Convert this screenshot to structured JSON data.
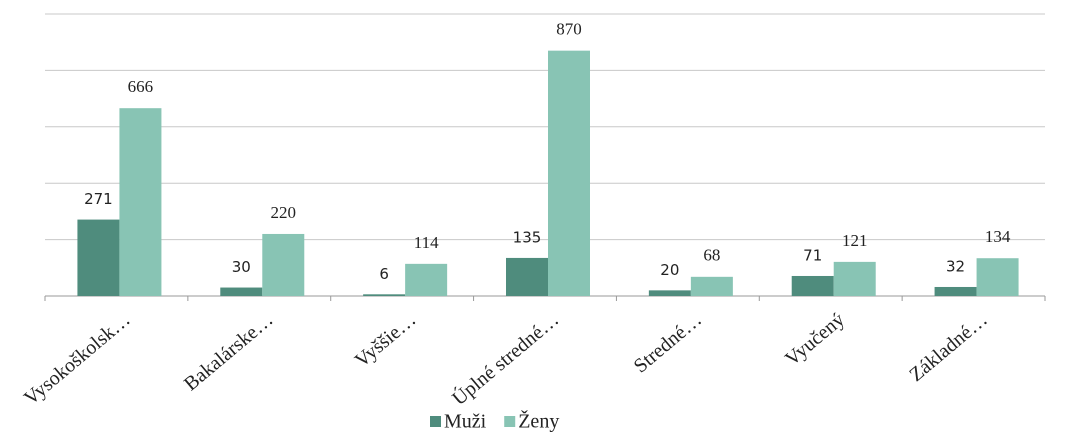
{
  "chart_data": {
    "type": "bar",
    "categories": [
      "Vysokoškolsk…",
      "Bakalárske…",
      "Vyššie…",
      "Úplné stredné…",
      "Stredné…",
      "Vyučený",
      "Základné…"
    ],
    "series": [
      {
        "name": "Muži",
        "color": "#4f8c7d",
        "values": [
          271,
          30,
          6,
          135,
          20,
          71,
          32
        ]
      },
      {
        "name": "Ženy",
        "color": "#88c4b4",
        "values": [
          666,
          220,
          114,
          870,
          68,
          121,
          134
        ]
      }
    ],
    "ylim": [
      0,
      1000
    ],
    "yticks": [
      0,
      200,
      400,
      600,
      800,
      1000
    ],
    "grid": true,
    "legend": "bottom"
  }
}
